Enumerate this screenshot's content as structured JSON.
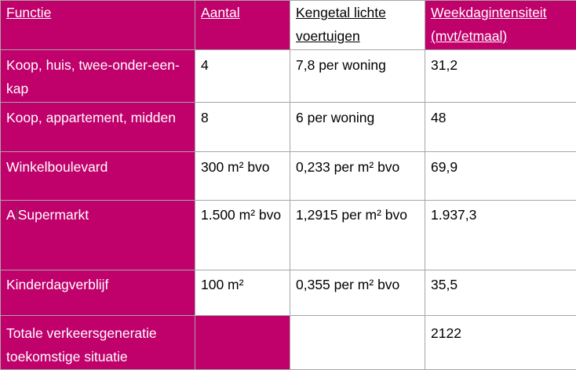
{
  "table": {
    "headers": [
      "Functie",
      "Aantal",
      "Kengetal lichte voertuigen",
      "Weekdagintensiteit (mvt/etmaal)"
    ],
    "rows": [
      {
        "functie": "Koop, huis, twee-onder-een-kap",
        "aantal": "4",
        "kengetal": "7,8  per woning",
        "intensiteit": "31,2"
      },
      {
        "functie": "Koop, appartement, midden",
        "aantal": "8",
        "kengetal": "6 per woning",
        "intensiteit": "48"
      },
      {
        "functie": "Winkelboulevard",
        "aantal": "300 m² bvo",
        "kengetal": "0,233 per m² bvo",
        "intensiteit": "69,9"
      },
      {
        "functie_prefix": "A",
        "functie": "Supermarkt",
        "aantal": "1.500 m² bvo",
        "kengetal": "1,2915 per m² bvo",
        "intensiteit": "1.937,3"
      },
      {
        "functie": "Kinderdagverblijf",
        "aantal": "100 m²",
        "kengetal": "0,355 per m² bvo",
        "intensiteit": "35,5"
      }
    ],
    "total": {
      "label": "Totale verkeersgeneratie toekomstige situatie",
      "aantal": "",
      "kengetal": "",
      "intensiteit": "2122"
    },
    "colors": {
      "accent": "#c0006b",
      "border": "#a6a6a6"
    }
  }
}
